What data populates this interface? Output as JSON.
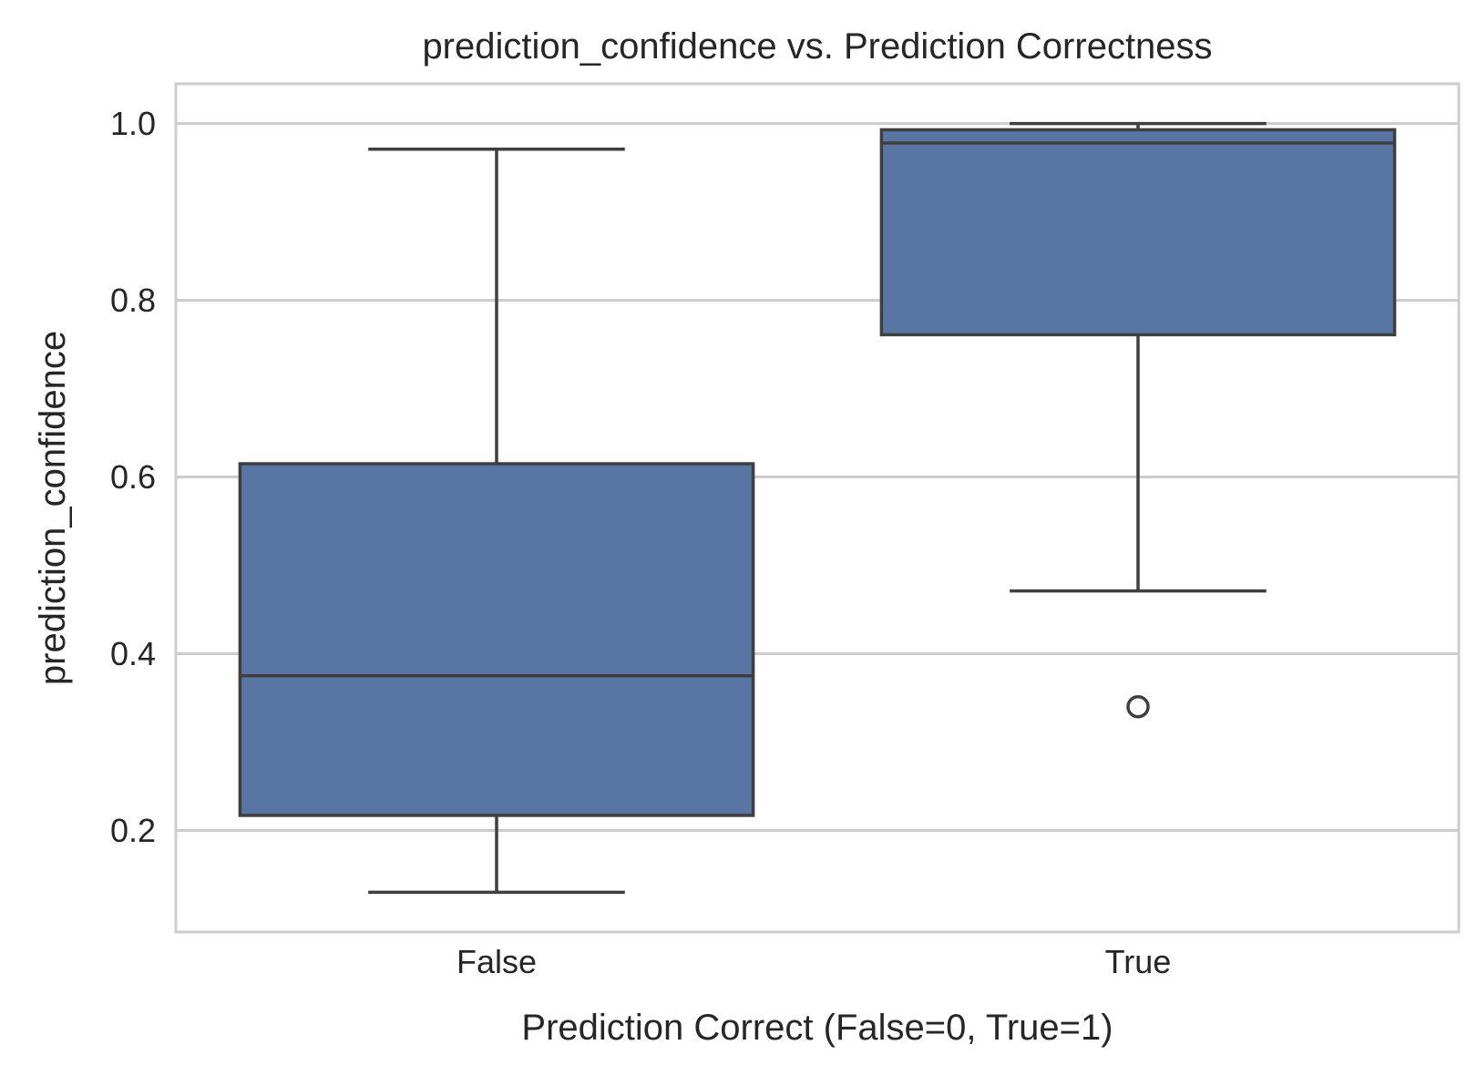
{
  "chart_data": {
    "type": "box",
    "title": "prediction_confidence vs. Prediction Correctness",
    "xlabel": "Prediction Correct (False=0, True=1)",
    "ylabel": "prediction_confidence",
    "categories": [
      "False",
      "True"
    ],
    "ylim": [
      0.085,
      1.045
    ],
    "yticks": [
      0.2,
      0.4,
      0.6,
      0.8,
      1.0
    ],
    "ytick_labels": [
      "0.2",
      "0.4",
      "0.6",
      "0.8",
      "1.0"
    ],
    "grid": "horizontal",
    "box_color": "#5975a4",
    "line_color": "#3f3f3f",
    "grid_color": "#cccccc",
    "boxes": [
      {
        "category": "False",
        "whisker_low": 0.13,
        "q1": 0.217,
        "median": 0.375,
        "q3": 0.615,
        "whisker_high": 0.971,
        "outliers": []
      },
      {
        "category": "True",
        "whisker_low": 0.471,
        "q1": 0.761,
        "median": 0.978,
        "q3": 0.993,
        "whisker_high": 1.0,
        "outliers": [
          0.34
        ]
      }
    ]
  }
}
